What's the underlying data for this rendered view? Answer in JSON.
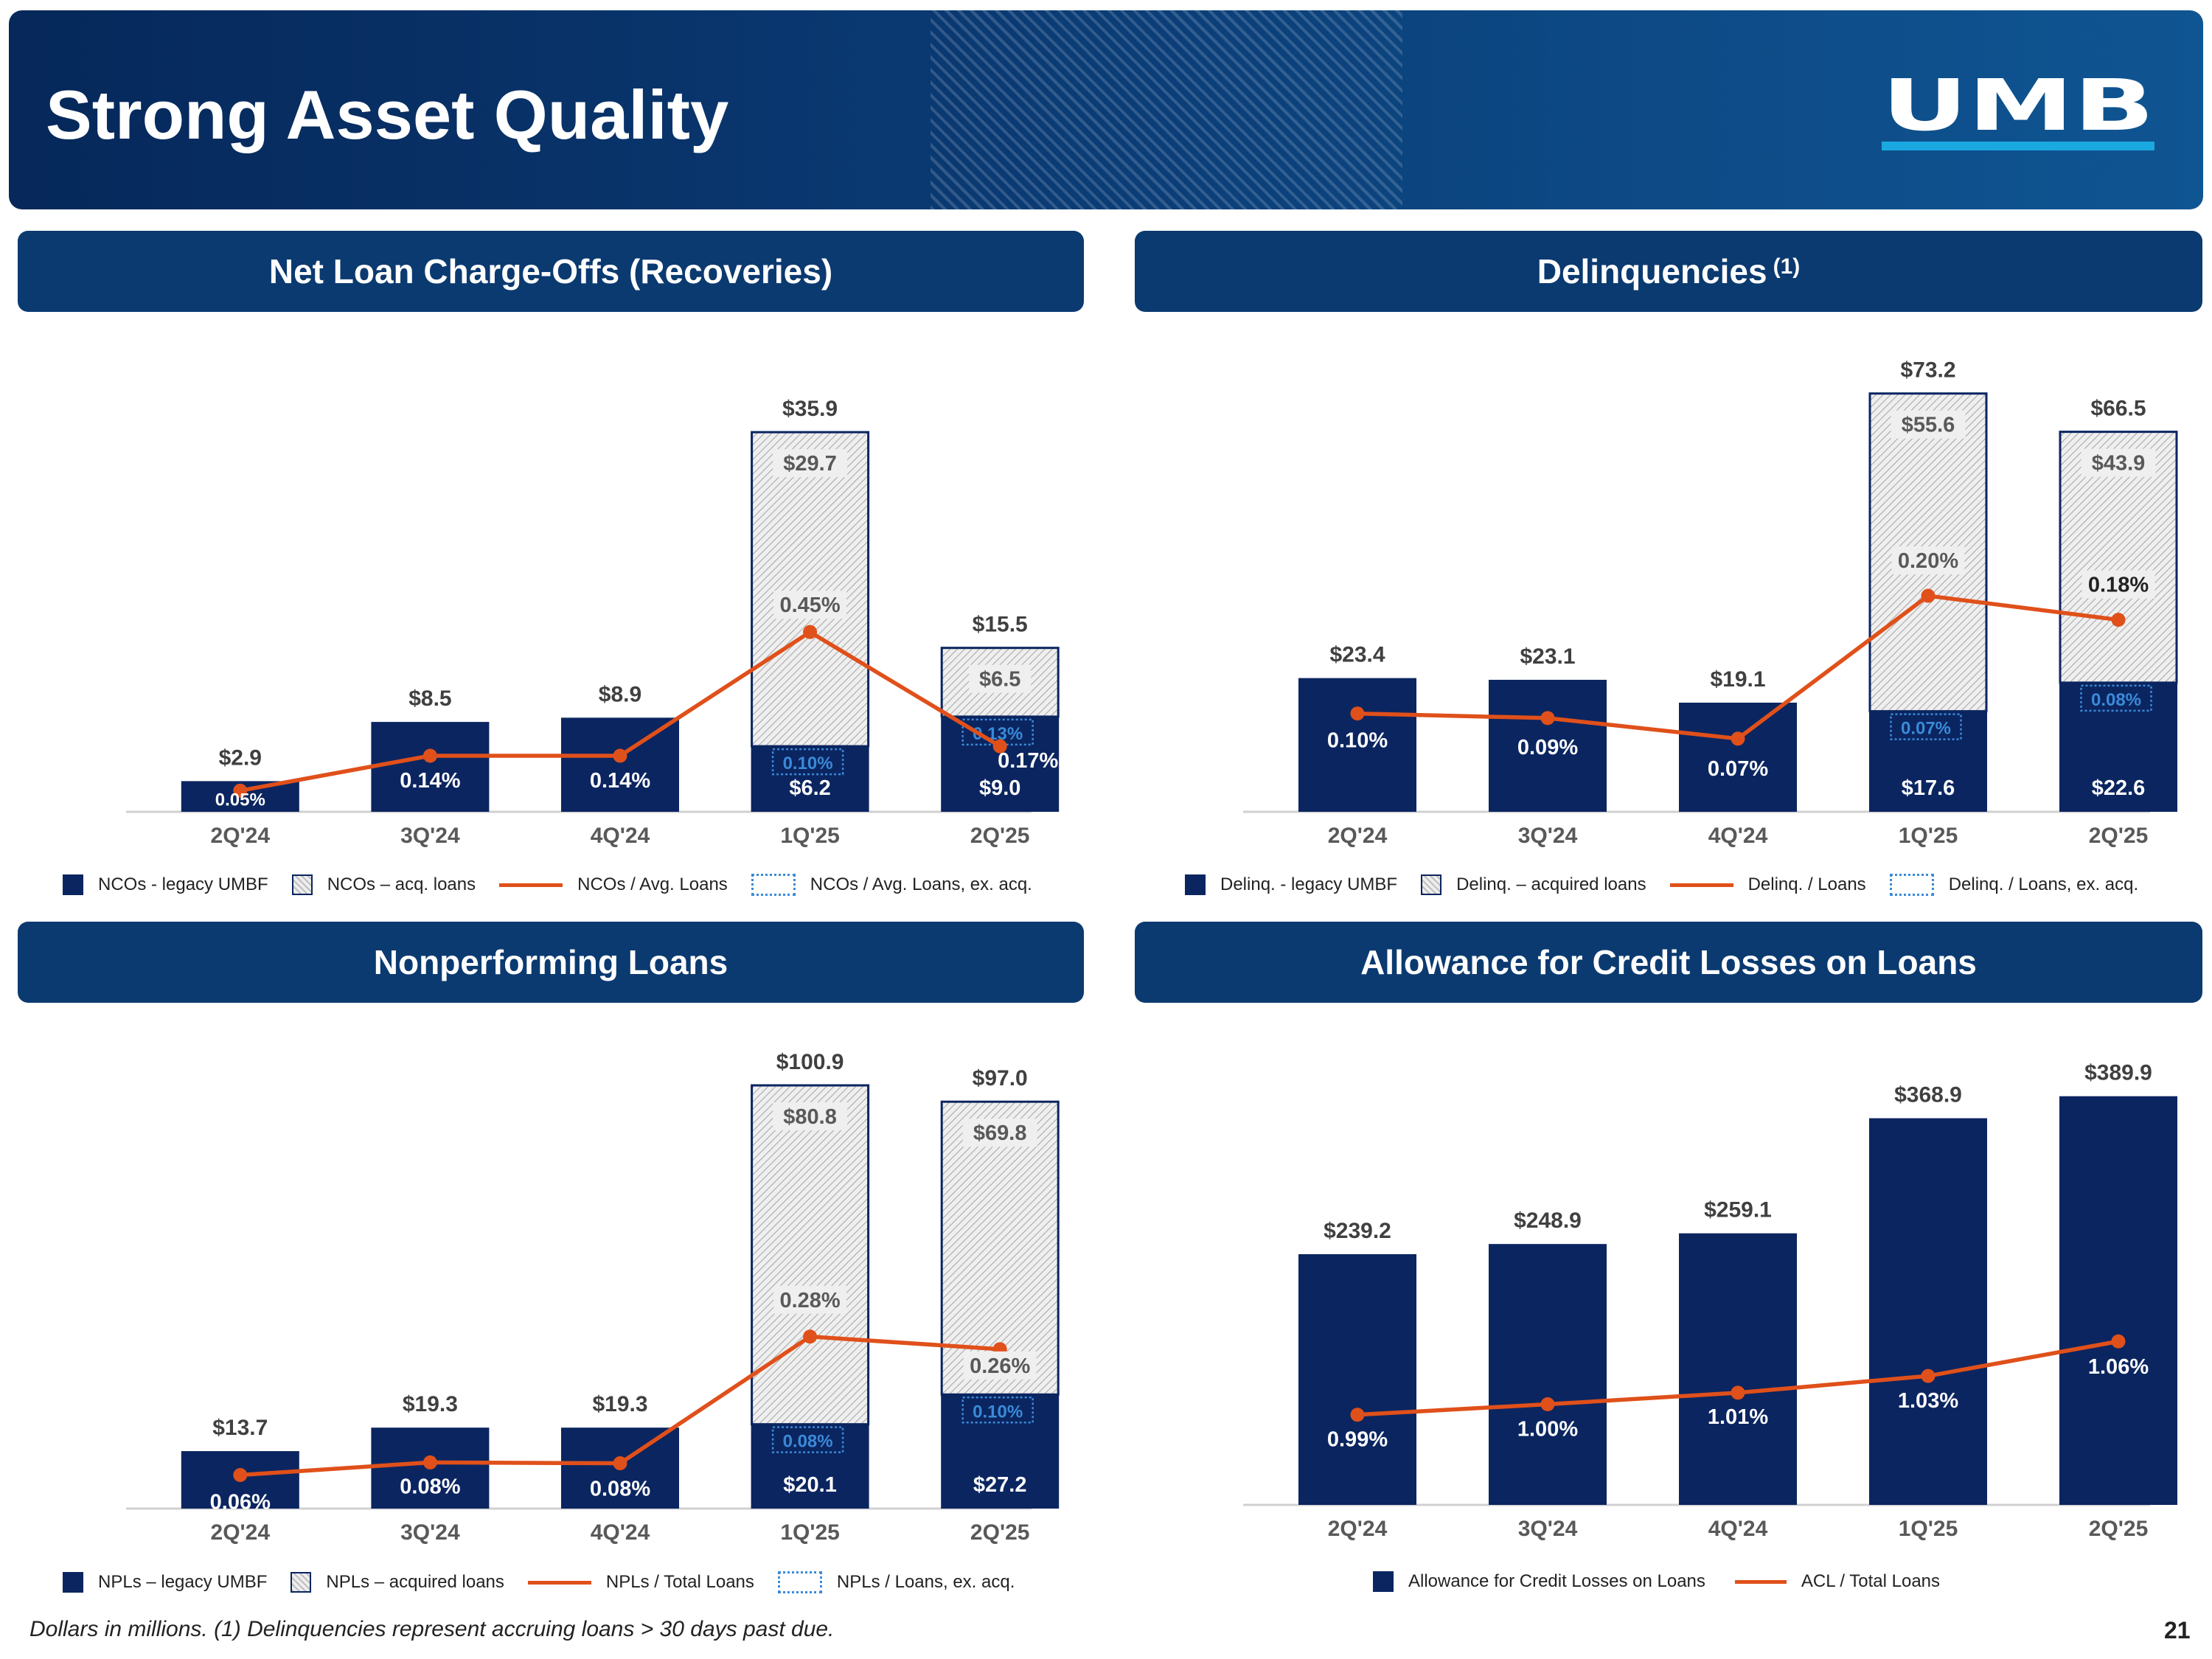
{
  "page": {
    "title": "Strong Asset Quality",
    "logo_text": "UMB",
    "footnote": "Dollars in millions. (1) Delinquencies represent accruing loans > 30 days past due.",
    "page_number": "21"
  },
  "colors": {
    "navy": "#0b2560",
    "orange": "#e0501a",
    "blue_label": "#3a8ad8",
    "header": "#0b3a70"
  },
  "chart_data": [
    {
      "id": "nco",
      "type": "bar",
      "title": "Net Loan Charge-Offs (Recoveries)",
      "title_sup": "",
      "categories": [
        "2Q'24",
        "3Q'24",
        "4Q'24",
        "1Q'25",
        "2Q'25"
      ],
      "ylim": [
        0,
        38
      ],
      "series": [
        {
          "name": "NCOs - legacy UMBF",
          "kind": "bar",
          "values": [
            2.9,
            8.5,
            8.9,
            6.2,
            9.0
          ],
          "labels": [
            "",
            "",
            "",
            "$6.2",
            "$9.0"
          ]
        },
        {
          "name": "NCOs – acq. loans",
          "kind": "hatch",
          "values": [
            0,
            0,
            0,
            29.7,
            6.5
          ],
          "labels": [
            "",
            "",
            "",
            "$29.7",
            "$6.5"
          ]
        }
      ],
      "totals": [
        "$2.9",
        "$8.5",
        "$8.9",
        "$35.9",
        "$15.5"
      ],
      "ratio_line": {
        "name": "NCOs / Avg. Loans",
        "labels": [
          "0.05%",
          "0.14%",
          "0.14%",
          "0.45%",
          "0.17%"
        ],
        "plot_values": [
          2.0,
          5.3,
          5.3,
          17.0,
          6.2
        ]
      },
      "ex_acq": {
        "name": "NCOs / Avg. Loans, ex. acq.",
        "labels": [
          "",
          "",
          "",
          "0.10%",
          "0.13%"
        ]
      },
      "legend": [
        "NCOs - legacy UMBF",
        "NCOs – acq. loans",
        "NCOs / Avg. Loans",
        "NCOs / Avg. Loans, ex. acq."
      ]
    },
    {
      "id": "delinq",
      "type": "bar",
      "title": "Delinquencies",
      "title_sup": "(1)",
      "categories": [
        "2Q'24",
        "3Q'24",
        "4Q'24",
        "1Q'25",
        "2Q'25"
      ],
      "ylim": [
        0,
        76
      ],
      "series": [
        {
          "name": "Delinq. - legacy UMBF",
          "kind": "bar",
          "values": [
            23.4,
            23.1,
            19.1,
            17.6,
            22.6
          ],
          "labels": [
            "",
            "",
            "",
            "$17.6",
            "$22.6"
          ]
        },
        {
          "name": "Delinq. – acquired loans",
          "kind": "hatch",
          "values": [
            0,
            0,
            0,
            55.6,
            43.9
          ],
          "labels": [
            "",
            "",
            "",
            "$55.6",
            "$43.9"
          ]
        }
      ],
      "totals": [
        "$23.4",
        "$23.1",
        "$19.1",
        "$73.2",
        "$66.5"
      ],
      "ratio_line": {
        "name": "Delinq. / Loans",
        "labels": [
          "0.10%",
          "0.09%",
          "0.07%",
          "0.20%",
          "0.18%"
        ],
        "plot_values": [
          17.2,
          16.4,
          12.8,
          37.8,
          33.6
        ]
      },
      "ex_acq": {
        "name": "Delinq. / Loans, ex. acq.",
        "labels": [
          "",
          "",
          "",
          "0.07%",
          "0.08%"
        ]
      },
      "legend": [
        "Delinq. - legacy UMBF",
        "Delinq. – acquired loans",
        "Delinq. / Loans",
        "Delinq. / Loans, ex. acq."
      ]
    },
    {
      "id": "npl",
      "type": "bar",
      "title": "Nonperforming Loans",
      "title_sup": "",
      "categories": [
        "2Q'24",
        "3Q'24",
        "4Q'24",
        "1Q'25",
        "2Q'25"
      ],
      "ylim": [
        0,
        106
      ],
      "series": [
        {
          "name": "NPLs – legacy UMBF",
          "kind": "bar",
          "values": [
            13.7,
            19.3,
            19.3,
            20.1,
            27.2
          ],
          "labels": [
            "",
            "",
            "",
            "$20.1",
            "$27.2"
          ]
        },
        {
          "name": "NPLs – acquired loans",
          "kind": "hatch",
          "values": [
            0,
            0,
            0,
            80.8,
            69.8
          ],
          "labels": [
            "",
            "",
            "",
            "$80.8",
            "$69.8"
          ]
        }
      ],
      "totals": [
        "$13.7",
        "$19.3",
        "$19.3",
        "$100.9",
        "$97.0"
      ],
      "ratio_line": {
        "name": "NPLs / Total Loans",
        "labels": [
          "0.06%",
          "0.08%",
          "0.08%",
          "0.28%",
          "0.26%"
        ],
        "plot_values": [
          8.0,
          11.0,
          10.8,
          41.0,
          38.0
        ]
      },
      "ex_acq": {
        "name": "NPLs / Loans, ex. acq.",
        "labels": [
          "",
          "",
          "",
          "0.08%",
          "0.10%"
        ]
      },
      "legend": [
        "NPLs – legacy UMBF",
        "NPLs – acquired loans",
        "NPLs / Total Loans",
        "NPLs / Loans, ex. acq."
      ]
    },
    {
      "id": "acl",
      "type": "bar",
      "title": "Allowance for Credit Losses on Loans",
      "title_sup": "",
      "categories": [
        "2Q'24",
        "3Q'24",
        "4Q'24",
        "1Q'25",
        "2Q'25"
      ],
      "ylim": [
        0,
        408
      ],
      "series": [
        {
          "name": "Allowance for Credit Losses on Loans",
          "kind": "bar",
          "values": [
            239.2,
            248.9,
            259.1,
            368.9,
            389.9
          ],
          "labels": [
            "",
            "",
            "",
            "",
            ""
          ]
        }
      ],
      "totals": [
        "$239.2",
        "$248.9",
        "$259.1",
        "$368.9",
        "$389.9"
      ],
      "ratio_line": {
        "name": "ACL / Total Loans",
        "labels": [
          "0.99%",
          "1.00%",
          "1.01%",
          "1.03%",
          "1.06%"
        ],
        "plot_values": [
          86,
          96,
          107,
          123,
          156
        ]
      },
      "ex_acq": null,
      "legend": [
        "Allowance for Credit Losses on Loans",
        "ACL / Total Loans"
      ]
    }
  ]
}
